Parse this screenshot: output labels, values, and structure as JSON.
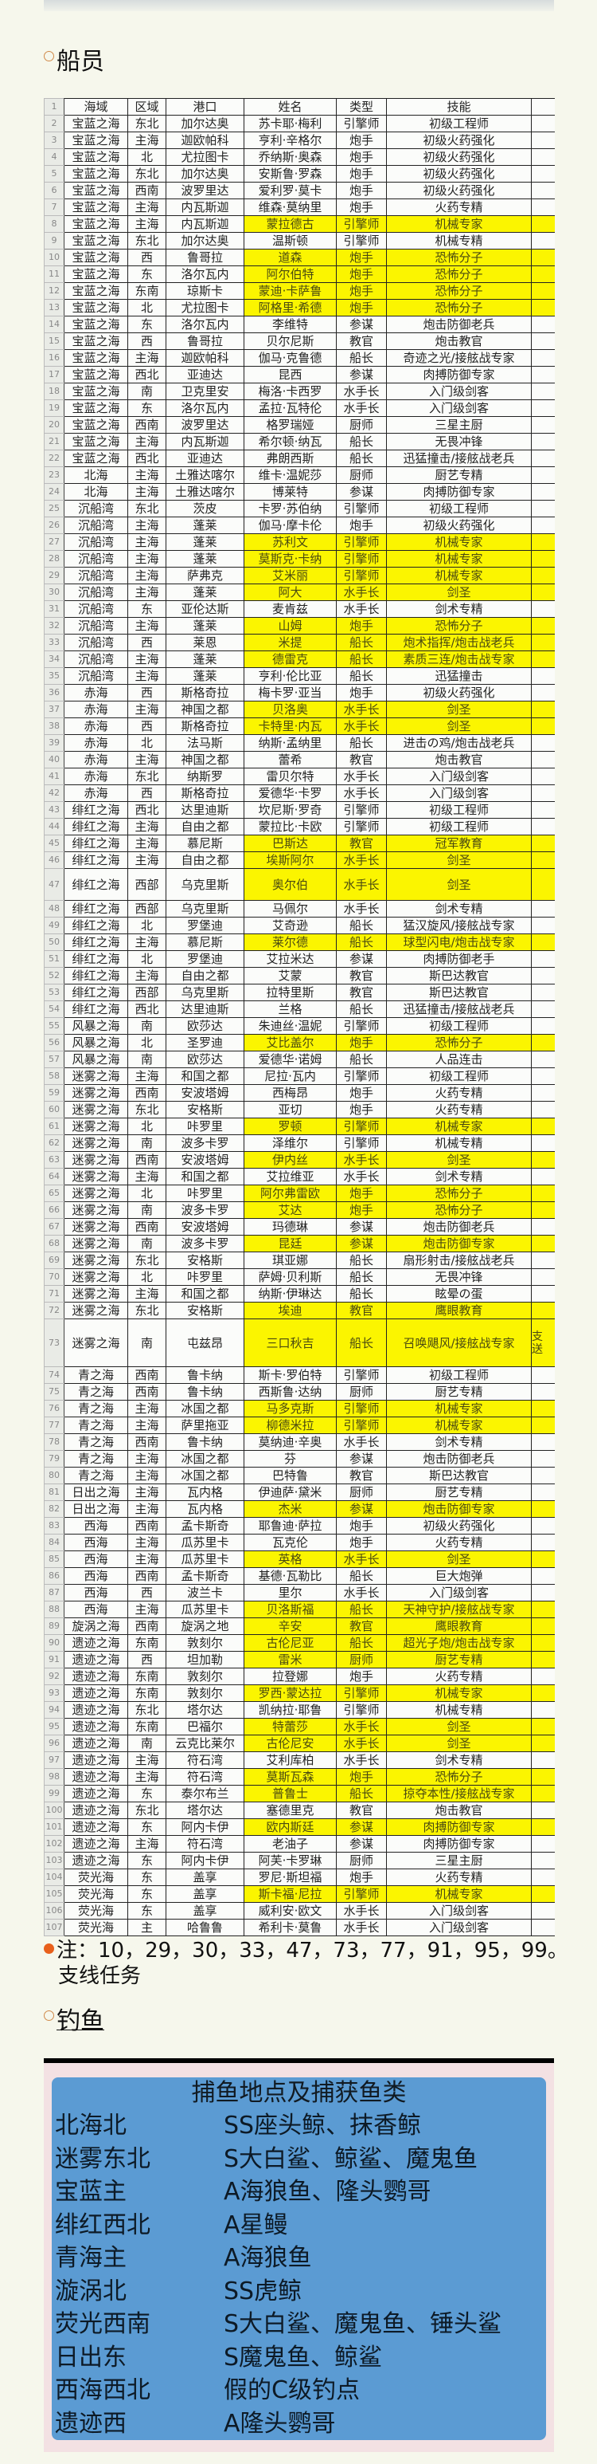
{
  "crew_section": {
    "title": "船员"
  },
  "table": {
    "header_row_number": "1",
    "columns": [
      "海域",
      "区域",
      "港口",
      "姓名",
      "类型",
      "技能",
      ""
    ],
    "highlight_color": "#fbf500",
    "rows": [
      [
        "2",
        "宝蓝之海",
        "东北",
        "加尔达奥",
        "苏卡耶·梅利",
        "引擎师",
        "初级工程师"
      ],
      [
        "3",
        "宝蓝之海",
        "主海",
        "迦欧帕科",
        "亨利·辛格尔",
        "炮手",
        "初级火药强化"
      ],
      [
        "4",
        "宝蓝之海",
        "北",
        "尤拉图卡",
        "乔纳斯·奥森",
        "炮手",
        "初级火药强化"
      ],
      [
        "5",
        "宝蓝之海",
        "东北",
        "加尔达奥",
        "安斯鲁·罗森",
        "炮手",
        "初级火药强化"
      ],
      [
        "6",
        "宝蓝之海",
        "西南",
        "波罗里达",
        "爱利罗·莫卡",
        "炮手",
        "初级火药强化"
      ],
      [
        "7",
        "宝蓝之海",
        "主海",
        "内瓦斯迦",
        "维森·莫纳里",
        "炮手",
        "火药专精"
      ],
      [
        "8",
        "宝蓝之海",
        "主海",
        "内瓦斯迦",
        "蒙拉德古",
        "引擎师",
        "机械专家"
      ],
      [
        "9",
        "宝蓝之海",
        "东北",
        "加尔达奥",
        "温斯顿",
        "引擎师",
        "机械专精"
      ],
      [
        "10",
        "宝蓝之海",
        "西",
        "鲁哥拉",
        "道森",
        "炮手",
        "恐怖分子"
      ],
      [
        "11",
        "宝蓝之海",
        "东",
        "洛尔瓦内",
        "阿尔伯特",
        "炮手",
        "恐怖分子"
      ],
      [
        "12",
        "宝蓝之海",
        "东南",
        "琼斯卡",
        "蒙迪·卡萨鲁",
        "炮手",
        "恐怖分子"
      ],
      [
        "13",
        "宝蓝之海",
        "北",
        "尤拉图卡",
        "阿格里·希德",
        "炮手",
        "恐怖分子"
      ],
      [
        "14",
        "宝蓝之海",
        "东",
        "洛尔瓦内",
        "李维特",
        "参谋",
        "炮击防御老兵"
      ],
      [
        "15",
        "宝蓝之海",
        "西",
        "鲁哥拉",
        "贝尔尼斯",
        "教官",
        "炮击教官"
      ],
      [
        "16",
        "宝蓝之海",
        "主海",
        "迦欧帕科",
        "伽马·克鲁德",
        "船长",
        "奇迹之光/接舷战专家"
      ],
      [
        "17",
        "宝蓝之海",
        "西北",
        "亚迪达",
        "昆西",
        "参谋",
        "肉搏防御专家"
      ],
      [
        "18",
        "宝蓝之海",
        "南",
        "卫克里安",
        "梅洛·卡西罗",
        "水手长",
        "入门级剑客"
      ],
      [
        "19",
        "宝蓝之海",
        "东",
        "洛尔瓦内",
        "孟拉·瓦特伦",
        "水手长",
        "入门级剑客"
      ],
      [
        "20",
        "宝蓝之海",
        "西南",
        "波罗里达",
        "格罗瑞娅",
        "厨师",
        "三星主厨"
      ],
      [
        "21",
        "宝蓝之海",
        "主海",
        "内瓦斯迦",
        "希尔顿·纳瓦",
        "船长",
        "无畏冲锋"
      ],
      [
        "22",
        "宝蓝之海",
        "西北",
        "亚迪达",
        "弗朗西斯",
        "船长",
        "迅猛撞击/接舷战老兵"
      ],
      [
        "23",
        "北海",
        "主海",
        "土雅达喀尔",
        "维卡·温妮莎",
        "厨师",
        "厨艺专精"
      ],
      [
        "24",
        "北海",
        "主海",
        "土雅达喀尔",
        "博莱特",
        "参谋",
        "肉搏防御专家"
      ],
      [
        "25",
        "沉船湾",
        "东北",
        "茨皮",
        "卡罗·苏伯纳",
        "引擎师",
        "初级工程师"
      ],
      [
        "26",
        "沉船湾",
        "主海",
        "蓬莱",
        "伽马·摩卡伦",
        "炮手",
        "初级火药强化"
      ],
      [
        "27",
        "沉船湾",
        "主海",
        "蓬莱",
        "苏利文",
        "引擎师",
        "机械专家"
      ],
      [
        "28",
        "沉船湾",
        "主海",
        "蓬莱",
        "莫斯克·卡纳",
        "引擎师",
        "机械专家"
      ],
      [
        "29",
        "沉船湾",
        "主海",
        "萨弗克",
        "艾米丽",
        "引擎师",
        "机械专家"
      ],
      [
        "30",
        "沉船湾",
        "主海",
        "蓬莱",
        "阿大",
        "水手长",
        "剑圣"
      ],
      [
        "31",
        "沉船湾",
        "东",
        "亚伦达斯",
        "麦肯兹",
        "水手长",
        "剑术专精"
      ],
      [
        "32",
        "沉船湾",
        "主海",
        "蓬莱",
        "山姆",
        "炮手",
        "恐怖分子"
      ],
      [
        "33",
        "沉船湾",
        "西",
        "莱恩",
        "米提",
        "船长",
        "炮术指挥/炮击战老兵"
      ],
      [
        "34",
        "沉船湾",
        "主海",
        "蓬莱",
        "德雷克",
        "船长",
        "素质三连/炮击战专家"
      ],
      [
        "35",
        "沉船湾",
        "主海",
        "蓬莱",
        "亨利·伦比亚",
        "船长",
        "迅猛撞击"
      ],
      [
        "36",
        "赤海",
        "西",
        "斯格奇拉",
        "梅卡罗·亚当",
        "炮手",
        "初级火药强化"
      ],
      [
        "37",
        "赤海",
        "主海",
        "神国之都",
        "贝洛奥",
        "水手长",
        "剑圣"
      ],
      [
        "38",
        "赤海",
        "西",
        "斯格奇拉",
        "卡特里·内瓦",
        "水手长",
        "剑圣"
      ],
      [
        "39",
        "赤海",
        "北",
        "法马斯",
        "纳斯·孟纳里",
        "船长",
        "进击の鸡/炮击战老兵"
      ],
      [
        "40",
        "赤海",
        "主海",
        "神国之都",
        "蕾希",
        "教官",
        "炮击教官"
      ],
      [
        "41",
        "赤海",
        "东北",
        "纳斯罗",
        "雷贝尔特",
        "水手长",
        "入门级剑客"
      ],
      [
        "42",
        "赤海",
        "西",
        "斯格奇拉",
        "爱德华·卡罗",
        "水手长",
        "入门级剑客"
      ],
      [
        "43",
        "绯红之海",
        "西北",
        "达里迪斯",
        "坎尼斯·罗奇",
        "引擎师",
        "初级工程师"
      ],
      [
        "44",
        "绯红之海",
        "主海",
        "自由之都",
        "蒙拉比·卡欧",
        "引擎师",
        "初级工程师"
      ],
      [
        "45",
        "绯红之海",
        "主海",
        "慕尼斯",
        "巴斯达",
        "教官",
        "冠军教育"
      ],
      [
        "46",
        "绯红之海",
        "主海",
        "自由之都",
        "埃斯阿尔",
        "水手长",
        "剑圣"
      ],
      [
        "47",
        "绯红之海",
        "西部",
        "乌克里斯",
        "奥尔伯",
        "水手长",
        "剑圣"
      ],
      [
        "48",
        "绯红之海",
        "西部",
        "乌克里斯",
        "马佩尔",
        "水手长",
        "剑术专精"
      ],
      [
        "49",
        "绯红之海",
        "北",
        "罗堡迪",
        "艾奇逊",
        "船长",
        "猛汉旋风/接舷战专家"
      ],
      [
        "50",
        "绯红之海",
        "主海",
        "慕尼斯",
        "莱尔德",
        "船长",
        "球型闪电/炮击战专家"
      ],
      [
        "51",
        "绯红之海",
        "北",
        "罗堡迪",
        "艾拉米达",
        "参谋",
        "肉搏防御老手"
      ],
      [
        "52",
        "绯红之海",
        "主海",
        "自由之都",
        "艾蒙",
        "教官",
        "斯巴达教官"
      ],
      [
        "53",
        "绯红之海",
        "西部",
        "乌克里斯",
        "拉特里斯",
        "教官",
        "斯巴达教官"
      ],
      [
        "54",
        "绯红之海",
        "西北",
        "达里迪斯",
        "兰格",
        "船长",
        "迅猛撞击/接舷战老兵"
      ],
      [
        "55",
        "风暴之海",
        "南",
        "欧莎达",
        "朱迪丝·温妮",
        "引擎师",
        "初级工程师"
      ],
      [
        "56",
        "风暴之海",
        "北",
        "圣罗迪",
        "艾比盖尔",
        "炮手",
        "恐怖分子"
      ],
      [
        "57",
        "风暴之海",
        "南",
        "欧莎达",
        "爱德华·诺姆",
        "船长",
        "人品连击"
      ],
      [
        "58",
        "迷雾之海",
        "主海",
        "和国之都",
        "尼拉·瓦内",
        "引擎师",
        "初级工程师"
      ],
      [
        "59",
        "迷雾之海",
        "西南",
        "安波塔姆",
        "西梅昂",
        "炮手",
        "火药专精"
      ],
      [
        "60",
        "迷雾之海",
        "东北",
        "安格斯",
        "亚切",
        "炮手",
        "火药专精"
      ],
      [
        "61",
        "迷雾之海",
        "北",
        "咔罗里",
        "罗顿",
        "引擎师",
        "机械专家"
      ],
      [
        "62",
        "迷雾之海",
        "南",
        "波多卡罗",
        "泽维尔",
        "引擎师",
        "机械专精"
      ],
      [
        "63",
        "迷雾之海",
        "西南",
        "安波塔姆",
        "伊内丝",
        "水手长",
        "剑圣"
      ],
      [
        "64",
        "迷雾之海",
        "主海",
        "和国之都",
        "艾拉维亚",
        "水手长",
        "剑术专精"
      ],
      [
        "65",
        "迷雾之海",
        "北",
        "咔罗里",
        "阿尔弗雷欧",
        "炮手",
        "恐怖分子"
      ],
      [
        "66",
        "迷雾之海",
        "南",
        "波多卡罗",
        "艾达",
        "炮手",
        "恐怖分子"
      ],
      [
        "67",
        "迷雾之海",
        "西南",
        "安波塔姆",
        "玛德琳",
        "参谋",
        "炮击防御老兵"
      ],
      [
        "68",
        "迷雾之海",
        "南",
        "波多卡罗",
        "昆廷",
        "参谋",
        "炮击防御专家"
      ],
      [
        "69",
        "迷雾之海",
        "东北",
        "安格斯",
        "琪亚娜",
        "船长",
        "扇形射击/接舷战老兵"
      ],
      [
        "70",
        "迷雾之海",
        "北",
        "咔罗里",
        "萨姆·贝利斯",
        "船长",
        "无畏冲锋"
      ],
      [
        "71",
        "迷雾之海",
        "主海",
        "和国之都",
        "纳斯·伊琳达",
        "船长",
        "眩晕の蛋"
      ],
      [
        "72",
        "迷雾之海",
        "东北",
        "安格斯",
        "埃迪",
        "教官",
        "鹰眼教育"
      ],
      [
        "73",
        "迷雾之海",
        "南",
        "屯兹昂",
        "三口秋吉",
        "船长",
        "召唤飓风/接舷战专家",
        "支\n送"
      ],
      [
        "74",
        "青之海",
        "西南",
        "鲁卡纳",
        "斯卡·罗伯特",
        "引擎师",
        "初级工程师"
      ],
      [
        "75",
        "青之海",
        "西南",
        "鲁卡纳",
        "西斯鲁·达纳",
        "厨师",
        "厨艺专精"
      ],
      [
        "76",
        "青之海",
        "主海",
        "冰国之都",
        "马多克斯",
        "引擎师",
        "机械专家"
      ],
      [
        "77",
        "青之海",
        "主海",
        "萨里拖亚",
        "柳德米拉",
        "引擎师",
        "机械专家"
      ],
      [
        "78",
        "青之海",
        "西南",
        "鲁卡纳",
        "莫纳迪·辛奥",
        "水手长",
        "剑术专精"
      ],
      [
        "79",
        "青之海",
        "主海",
        "冰国之都",
        "芬",
        "参谋",
        "炮击防御老兵"
      ],
      [
        "80",
        "青之海",
        "主海",
        "冰国之都",
        "巴特鲁",
        "教官",
        "斯巴达教官"
      ],
      [
        "81",
        "日出之海",
        "主海",
        "瓦内格",
        "伊迪萨·黛米",
        "厨师",
        "厨艺专精"
      ],
      [
        "82",
        "日出之海",
        "主海",
        "瓦内格",
        "杰米",
        "参谋",
        "炮击防御专家"
      ],
      [
        "83",
        "西海",
        "西南",
        "孟卡斯奇",
        "耶鲁迪·萨拉",
        "炮手",
        "初级火药强化"
      ],
      [
        "84",
        "西海",
        "主海",
        "瓜苏里卡",
        "瓦克伦",
        "炮手",
        "火药专精"
      ],
      [
        "85",
        "西海",
        "主海",
        "瓜苏里卡",
        "英格",
        "水手长",
        "剑圣"
      ],
      [
        "86",
        "西海",
        "西南",
        "孟卡斯奇",
        "基德·瓦勒比",
        "船长",
        "巨大炮弹"
      ],
      [
        "87",
        "西海",
        "西",
        "波兰卡",
        "里尔",
        "水手长",
        "入门级剑客"
      ],
      [
        "88",
        "西海",
        "主海",
        "瓜苏里卡",
        "贝洛斯福",
        "船长",
        "天神守护/接舷战专家"
      ],
      [
        "89",
        "旋涡之海",
        "西南",
        "旋涡之地",
        "辛安",
        "教官",
        "鹰眼教育"
      ],
      [
        "90",
        "遗迹之海",
        "东南",
        "敦刻尔",
        "古伦尼亚",
        "船长",
        "超光子炮/炮击战专家"
      ],
      [
        "91",
        "遗迹之海",
        "西",
        "坦加勒",
        "雷米",
        "厨师",
        "厨艺专精"
      ],
      [
        "92",
        "遗迹之海",
        "东南",
        "敦刻尔",
        "拉登娜",
        "炮手",
        "火药专精"
      ],
      [
        "93",
        "遗迹之海",
        "东南",
        "敦刻尔",
        "罗西·蒙达拉",
        "引擎师",
        "机械专家"
      ],
      [
        "94",
        "遗迹之海",
        "东北",
        "塔尔达",
        "凯纳拉·耶鲁",
        "引擎师",
        "机械专精"
      ],
      [
        "95",
        "遗迹之海",
        "东南",
        "巴福尔",
        "特蕾莎",
        "水手长",
        "剑圣"
      ],
      [
        "96",
        "遗迹之海",
        "南",
        "云克比莱尔",
        "古伦尼安",
        "水手长",
        "剑圣"
      ],
      [
        "97",
        "遗迹之海",
        "主海",
        "符石湾",
        "艾利库柏",
        "水手长",
        "剑术专精"
      ],
      [
        "98",
        "遗迹之海",
        "主海",
        "符石湾",
        "莫斯瓦森",
        "炮手",
        "恐怖分子"
      ],
      [
        "99",
        "遗迹之海",
        "东",
        "泰尔布兰",
        "普鲁士",
        "船长",
        "掠夺本性/接舷战专家"
      ],
      [
        "100",
        "遗迹之海",
        "东北",
        "塔尔达",
        "塞德里克",
        "教官",
        "炮击教官"
      ],
      [
        "101",
        "遗迹之海",
        "东",
        "阿内卡伊",
        "欧内斯廷",
        "参谋",
        "肉搏防御专家"
      ],
      [
        "102",
        "遗迹之海",
        "主海",
        "符石湾",
        "老油子",
        "参谋",
        "肉搏防御专家"
      ],
      [
        "103",
        "遗迹之海",
        "东",
        "阿内卡伊",
        "阿芙·卡罗琳",
        "厨师",
        "三星主厨"
      ],
      [
        "104",
        "荧光海",
        "东",
        "盖享",
        "罗尼·斯坦福",
        "炮手",
        "火药专精"
      ],
      [
        "105",
        "荧光海",
        "东",
        "盖享",
        "斯卡福·尼拉",
        "引擎师",
        "机械专家"
      ],
      [
        "106",
        "荧光海",
        "东",
        "盖享",
        "威利安·欧文",
        "水手长",
        "入门级剑客"
      ],
      [
        "107",
        "荧光海",
        "主",
        "哈鲁鲁",
        "希利卡·莫鲁",
        "水手长",
        "入门级剑客"
      ]
    ],
    "highlighted_rows": [
      "8",
      "10",
      "11",
      "12",
      "13",
      "27",
      "28",
      "29",
      "30",
      "32",
      "33",
      "34",
      "37",
      "38",
      "45",
      "46",
      "47",
      "50",
      "56",
      "61",
      "63",
      "65",
      "66",
      "68",
      "72",
      "73",
      "76",
      "77",
      "82",
      "85",
      "88",
      "89",
      "90",
      "91",
      "93",
      "95",
      "96",
      "98",
      "99",
      "101",
      "105"
    ],
    "tall_rows": [
      "47",
      "73"
    ]
  },
  "note": {
    "line1": "注：10，29，30，33，47，73，77，91，95，99。",
    "line2": "支线任务"
  },
  "fishing_section": {
    "title": "钓鱼",
    "box_title": "捕鱼地点及捕获鱼类",
    "box_color": "#5b9bd3",
    "rows": [
      {
        "location": "北海北",
        "fish": "SS座头鲸、抹香鲸"
      },
      {
        "location": "迷雾东北",
        "fish": "S大白鲨、鲸鲨、魔鬼鱼"
      },
      {
        "location": "宝蓝主",
        "fish": "A海狼鱼、隆头鹦哥"
      },
      {
        "location": "绯红西北",
        "fish": "A星鳗"
      },
      {
        "location": "青海主",
        "fish": "A海狼鱼"
      },
      {
        "location": "漩涡北",
        "fish": "SS虎鲸"
      },
      {
        "location": "荧光西南",
        "fish": "S大白鲨、魔鬼鱼、锤头鲨"
      },
      {
        "location": "日出东",
        "fish": "S魔鬼鱼、鲸鲨"
      },
      {
        "location": "西海西北",
        "fish": "假的C级钓点"
      },
      {
        "location": "遗迹西",
        "fish": "A隆头鹦哥"
      }
    ]
  }
}
